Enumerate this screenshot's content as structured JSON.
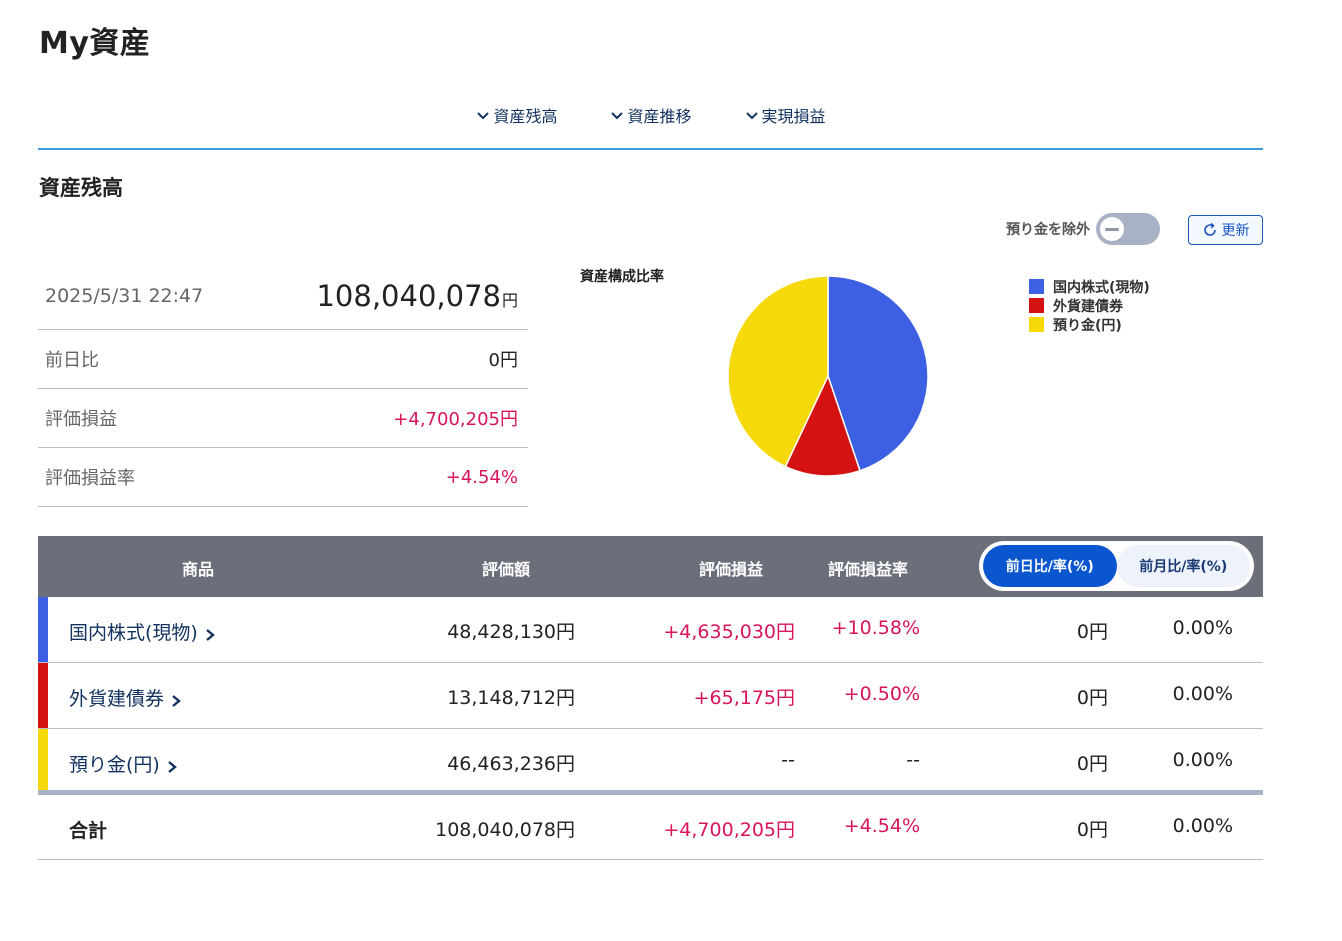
{
  "header": {
    "title": "My資産"
  },
  "nav": [
    {
      "label": "資産残高"
    },
    {
      "label": "資産推移"
    },
    {
      "label": "実現損益"
    }
  ],
  "section": {
    "title": "資産残高"
  },
  "controls": {
    "exclude_cash_label": "預り金を除外",
    "exclude_cash_on": false,
    "refresh_label": "更新"
  },
  "summary": {
    "datetime": "2025/5/31 22:47",
    "total_value": "108,040,078",
    "total_unit": "円",
    "rows": [
      {
        "label": "前日比",
        "value": "0円"
      },
      {
        "label": "評価損益",
        "value": "+4,700,205円"
      },
      {
        "label": "評価損益率",
        "value": "+4.54%"
      }
    ]
  },
  "chart_data": {
    "type": "pie",
    "title": "資産構成比率",
    "categories": [
      "国内株式(現物)",
      "外貨建債券",
      "預り金(円)"
    ],
    "values": [
      48428130,
      13148712,
      46463236
    ],
    "colors": [
      "#3c5fe3",
      "#d41212",
      "#f5d90a"
    ],
    "legend_position": "right"
  },
  "table": {
    "headers": {
      "product": "商品",
      "value": "評価額",
      "pl": "評価損益",
      "pl_rate": "評価損益率"
    },
    "toggle": {
      "active": "前日比/率(%)",
      "inactive": "前月比/率(%)"
    },
    "rows": [
      {
        "name": "国内株式(現物)",
        "value": "48,428,130円",
        "pl": "+4,635,030円",
        "pl_rate": "+10.58%",
        "change": "0円",
        "change_rate": "0.00%"
      },
      {
        "name": "外貨建債券",
        "value": "13,148,712円",
        "pl": "+65,175円",
        "pl_rate": "+0.50%",
        "change": "0円",
        "change_rate": "0.00%"
      },
      {
        "name": "預り金(円)",
        "value": "46,463,236円",
        "pl": "--",
        "pl_rate": "--",
        "change": "0円",
        "change_rate": "0.00%"
      }
    ],
    "total": {
      "label": "合計",
      "value": "108,040,078円",
      "pl": "+4,700,205円",
      "pl_rate": "+4.54%",
      "change": "0円",
      "change_rate": "0.00%"
    }
  }
}
